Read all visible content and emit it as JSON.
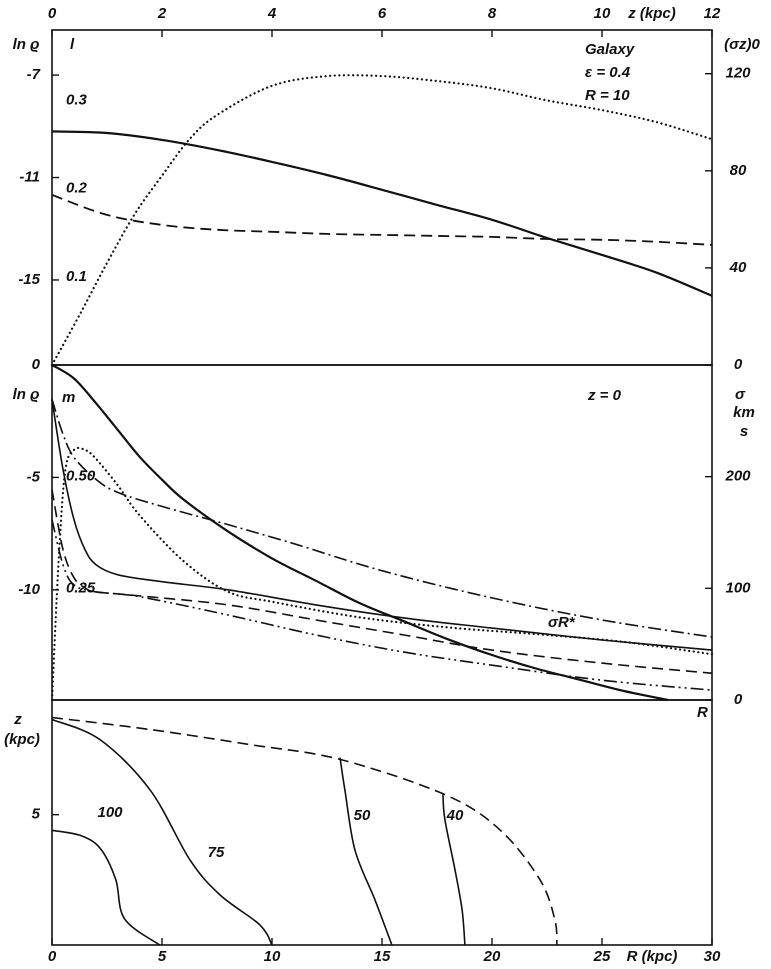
{
  "chart_data": [
    {
      "type": "line",
      "x_label": "z (kpc)",
      "xlim": [
        0,
        12
      ],
      "xticks": [
        0,
        2,
        4,
        6,
        8,
        10,
        12
      ],
      "y_label": "ln ϱ",
      "ylim": [
        -18.32,
        -5.24
      ],
      "yticks": [
        -7,
        -11,
        -15
      ],
      "inner_label": "l",
      "inner_lim": [
        0,
        0.38
      ],
      "inner_ticks": [
        0.1,
        0.2,
        0.3
      ],
      "y2_label": "(σz)0",
      "y2lim": [
        0,
        138
      ],
      "y2ticks": [
        0,
        40,
        80,
        120
      ],
      "annotations": [
        "Galaxy",
        "ε = 0.4",
        "R = 10"
      ],
      "series": [
        {
          "color": "#111111",
          "style": "solid",
          "width": 2.2,
          "x": [
            0,
            1,
            2,
            3,
            4,
            5,
            6,
            7,
            8,
            9,
            10,
            11,
            12
          ],
          "values": [
            -9.2,
            -9.26,
            -9.53,
            -9.92,
            -10.39,
            -10.9,
            -11.48,
            -12.07,
            -12.65,
            -13.36,
            -14.02,
            -14.72,
            -15.62
          ]
        },
        {
          "color": "#111111",
          "style": "dashed",
          "width": 1.8,
          "x": [
            0,
            1,
            2,
            3,
            4,
            5,
            6,
            7,
            8,
            9,
            10,
            11,
            12
          ],
          "values": [
            -11.68,
            -12.46,
            -12.85,
            -13.04,
            -13.12,
            -13.2,
            -13.24,
            -13.28,
            -13.32,
            -13.4,
            -13.43,
            -13.51,
            -13.63
          ]
        },
        {
          "color": "#111111",
          "style": "dotted",
          "width": 2.2,
          "axis": "y2",
          "x": [
            0,
            0.5,
            1,
            1.5,
            2,
            2.5,
            3,
            4,
            5,
            6,
            7,
            8,
            9,
            10,
            11,
            12
          ],
          "values": [
            0,
            20.6,
            42,
            62,
            78,
            93,
            103,
            115,
            119,
            119,
            117,
            114,
            109,
            105,
            100,
            93
          ]
        }
      ]
    },
    {
      "type": "line",
      "xlim": [
        0,
        30
      ],
      "y_label": "ln ϱ",
      "ylim": [
        -14.9,
        0
      ],
      "yticks": [
        0,
        -5,
        -10
      ],
      "inner_label": "m",
      "inner_lim": [
        0,
        0.75
      ],
      "inner_ticks": [
        {
          "value": 0.5,
          "label": "0.50"
        },
        0.25
      ],
      "y2_label": "σ",
      "y2_unit": [
        "km",
        "s"
      ],
      "y2lim": [
        0,
        300
      ],
      "y2ticks": [
        0,
        100,
        200
      ],
      "annotations": [
        "z = 0",
        "σR*",
        "R"
      ],
      "series": [
        {
          "color": "#111111",
          "style": "solid",
          "width": 2.2,
          "x": [
            0,
            1,
            2,
            3,
            4,
            5,
            6,
            8,
            10,
            12,
            14,
            16,
            18,
            20,
            22,
            24,
            26,
            28
          ],
          "values": [
            0,
            -0.6,
            -1.7,
            -2.9,
            -4.1,
            -5.1,
            -6.0,
            -7.4,
            -8.6,
            -9.6,
            -10.6,
            -11.4,
            -12.2,
            -12.9,
            -13.5,
            -14.0,
            -14.5,
            -14.9
          ]
        },
        {
          "color": "#111111",
          "style": "dashdot",
          "width": 1.6,
          "x": [
            0,
            0.5,
            1,
            2,
            3,
            5,
            8,
            11,
            15,
            20,
            25,
            30
          ],
          "values": [
            -1.52,
            -3.08,
            -4.11,
            -5.09,
            -5.67,
            -6.29,
            -7.1,
            -7.95,
            -9.15,
            -10.36,
            -11.34,
            -12.1
          ]
        },
        {
          "color": "#111111",
          "style": "solid",
          "width": 1.6,
          "x": [
            0,
            0.5,
            1,
            1.5,
            2,
            3,
            5,
            8,
            12,
            16,
            20,
            25,
            30
          ],
          "values": [
            -1.52,
            -4.64,
            -6.88,
            -8.21,
            -8.88,
            -9.33,
            -9.64,
            -10.0,
            -10.67,
            -11.25,
            -11.7,
            -12.23,
            -12.68
          ]
        },
        {
          "color": "#111111",
          "style": "dotted",
          "width": 2.2,
          "axis": "y2",
          "x": [
            0,
            0.3,
            0.6,
            1,
            1.5,
            2,
            3,
            4,
            6,
            8,
            10,
            14,
            18,
            22,
            26,
            30
          ],
          "values": [
            0,
            124,
            205,
            224,
            224,
            216,
            192,
            165,
            124,
            97,
            88,
            74,
            65,
            59,
            52,
            41
          ]
        },
        {
          "color": "#111111",
          "style": "dashed",
          "width": 1.6,
          "x": [
            0,
            0.5,
            1,
            1.5,
            2,
            4,
            8,
            12,
            16,
            20,
            25,
            30
          ],
          "values": [
            -5.54,
            -8.21,
            -9.46,
            -9.91,
            -10.09,
            -10.27,
            -10.67,
            -11.34,
            -12.01,
            -12.68,
            -13.26,
            -13.71
          ]
        },
        {
          "color": "#111111",
          "style": "dashdotdot",
          "width": 1.6,
          "x": [
            0,
            0.5,
            1,
            2,
            4,
            8,
            12,
            16,
            20,
            25,
            30
          ],
          "values": [
            -6.88,
            -8.88,
            -9.78,
            -10.09,
            -10.31,
            -11.12,
            -12.01,
            -12.77,
            -13.35,
            -14.02,
            -14.46
          ]
        }
      ]
    },
    {
      "type": "line",
      "x_label": "R (kpc)",
      "xlim": [
        0,
        30
      ],
      "xticks": [
        0,
        5,
        10,
        15,
        20,
        25,
        30
      ],
      "y_label": "z",
      "y_unit": "(kpc)",
      "ylim": [
        0,
        9.4
      ],
      "yticks": [
        5
      ],
      "series": [
        {
          "label": "100",
          "color": "#111111",
          "style": "solid",
          "width": 1.6,
          "x": [
            0,
            1.3,
            2.2,
            2.9,
            3.3,
            4.9
          ],
          "values": [
            4.4,
            4.2,
            3.7,
            2.5,
            1.0,
            0
          ]
        },
        {
          "label": "75",
          "color": "#111111",
          "style": "solid",
          "width": 1.6,
          "x": [
            0,
            2.18,
            4.45,
            6.27,
            7.64,
            9.45,
            10.0
          ],
          "values": [
            8.65,
            7.88,
            5.96,
            3.27,
            1.92,
            0.77,
            0
          ]
        },
        {
          "label": "50",
          "color": "#111111",
          "style": "solid",
          "width": 1.6,
          "x": [
            13.09,
            13.32,
            13.77,
            14.68,
            15.45
          ],
          "values": [
            7.19,
            5.92,
            3.65,
            1.73,
            0
          ]
        },
        {
          "label": "40",
          "color": "#111111",
          "style": "solid",
          "width": 1.6,
          "x": [
            17.77,
            17.86,
            18.32,
            18.64,
            18.77
          ],
          "values": [
            5.77,
            4.81,
            2.88,
            1.35,
            0
          ]
        },
        {
          "color": "#111111",
          "style": "dashed",
          "width": 1.6,
          "x": [
            0,
            4.45,
            9.0,
            13.09,
            17.86,
            20.36,
            22.18,
            22.86,
            22.95
          ],
          "values": [
            8.73,
            8.27,
            7.69,
            7.12,
            5.77,
            4.42,
            2.5,
            0.96,
            0
          ]
        }
      ]
    }
  ]
}
